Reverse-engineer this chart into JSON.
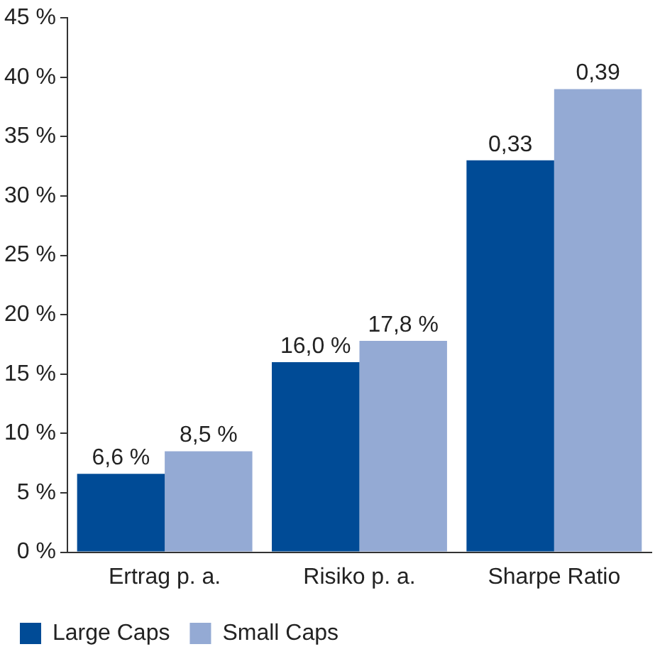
{
  "chart_data": {
    "type": "bar",
    "categories": [
      "Ertrag p. a.",
      "Risiko p. a.",
      "Sharpe Ratio"
    ],
    "series": [
      {
        "name": "Large Caps",
        "color": "#004b96",
        "values": [
          6.6,
          16.0,
          33
        ],
        "value_labels": [
          "6,6 %",
          "16,0 %",
          null
        ]
      },
      {
        "name": "Small Caps",
        "color": "#94aad4",
        "values": [
          8.5,
          17.8,
          39
        ],
        "value_labels": [
          "8,5 %",
          "17,8 %",
          null
        ]
      }
    ],
    "annotations": [
      {
        "text": "0,33",
        "x": "Sharpe Ratio",
        "y": 33
      },
      {
        "text": "0,39",
        "x": "Sharpe Ratio",
        "y": 39
      }
    ],
    "ylim": [
      0,
      45
    ],
    "yticks": [
      {
        "value": 0,
        "label": "0 %"
      },
      {
        "value": 5,
        "label": "5 %"
      },
      {
        "value": 10,
        "label": "10 %"
      },
      {
        "value": 15,
        "label": "15 %"
      },
      {
        "value": 20,
        "label": "20 %"
      },
      {
        "value": 25,
        "label": "25 %"
      },
      {
        "value": 30,
        "label": "30 %"
      },
      {
        "value": 35,
        "label": "35 %"
      },
      {
        "value": 40,
        "label": "40 %"
      },
      {
        "value": 45,
        "label": "45 %"
      }
    ],
    "grid": false,
    "legend": "bottom"
  }
}
